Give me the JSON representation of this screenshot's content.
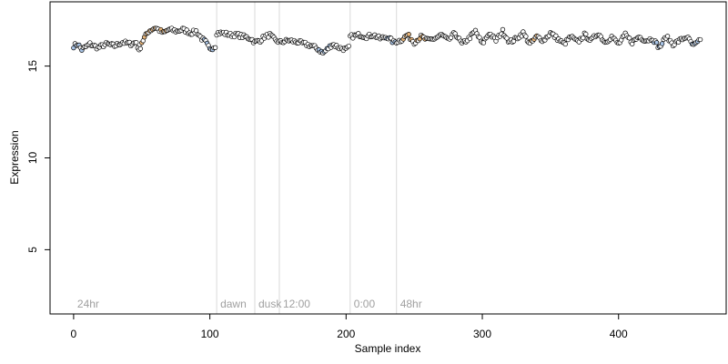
{
  "chart_data": {
    "type": "scatter",
    "title": "",
    "xlabel": "Sample index",
    "ylabel": "Expression",
    "xlim": [
      -17.3,
      479
    ],
    "ylim": [
      1.5,
      18.5
    ],
    "x_ticks": [
      0,
      100,
      200,
      300,
      400
    ],
    "y_ticks": [
      5,
      10,
      15
    ],
    "grid": false,
    "colors": {
      "point_fill_default": "#ffffff",
      "point_fill_blue": "#a9c4e6",
      "point_fill_orange": "#e6b47a",
      "point_stroke": "#000000",
      "trend_line": "#000000",
      "vline": "#d9d9d9",
      "annotation_text": "#a0a0a0"
    },
    "annotations": [
      {
        "label": "24hr",
        "x": 0
      },
      {
        "label": "dawn",
        "x": 105
      },
      {
        "label": "dusk",
        "x": 133
      },
      {
        "label": "12:00",
        "x": 151
      },
      {
        "label": "0:00",
        "x": 203
      },
      {
        "label": "48hr",
        "x": 237
      }
    ],
    "vlines": [
      105,
      133,
      151,
      203,
      237
    ],
    "trend_segments": [
      [
        0,
        104
      ],
      [
        105,
        202
      ],
      [
        203,
        460
      ]
    ],
    "n_points": 460,
    "y_keyframes": [
      [
        0,
        16.1
      ],
      [
        3,
        16.2
      ],
      [
        6,
        15.9
      ],
      [
        12,
        16.2
      ],
      [
        18,
        16.0
      ],
      [
        24,
        16.2
      ],
      [
        30,
        16.1
      ],
      [
        36,
        16.3
      ],
      [
        42,
        16.2
      ],
      [
        46,
        16.3
      ],
      [
        48,
        15.8
      ],
      [
        50,
        16.3
      ],
      [
        55,
        16.9
      ],
      [
        60,
        17.1
      ],
      [
        66,
        16.8
      ],
      [
        70,
        17.0
      ],
      [
        76,
        16.9
      ],
      [
        80,
        17.0
      ],
      [
        86,
        16.8
      ],
      [
        90,
        16.9
      ],
      [
        94,
        16.5
      ],
      [
        97,
        16.3
      ],
      [
        100,
        15.9
      ],
      [
        104,
        16.1
      ],
      [
        105,
        16.8
      ],
      [
        110,
        16.8
      ],
      [
        115,
        16.7
      ],
      [
        120,
        16.7
      ],
      [
        125,
        16.6
      ],
      [
        130,
        16.5
      ],
      [
        133,
        16.3
      ],
      [
        137,
        16.4
      ],
      [
        140,
        16.6
      ],
      [
        144,
        16.7
      ],
      [
        148,
        16.4
      ],
      [
        152,
        16.3
      ],
      [
        158,
        16.4
      ],
      [
        165,
        16.3
      ],
      [
        170,
        16.2
      ],
      [
        175,
        16.1
      ],
      [
        180,
        15.9
      ],
      [
        183,
        15.7
      ],
      [
        186,
        15.9
      ],
      [
        190,
        16.2
      ],
      [
        195,
        16.0
      ],
      [
        200,
        15.9
      ],
      [
        202,
        16.0
      ],
      [
        203,
        16.6
      ],
      [
        210,
        16.7
      ],
      [
        215,
        16.6
      ],
      [
        220,
        16.7
      ],
      [
        225,
        16.5
      ],
      [
        230,
        16.6
      ],
      [
        235,
        16.3
      ],
      [
        240,
        16.4
      ],
      [
        245,
        16.7
      ],
      [
        250,
        16.3
      ],
      [
        255,
        16.6
      ],
      [
        260,
        16.4
      ],
      [
        265,
        16.5
      ],
      [
        270,
        16.7
      ],
      [
        275,
        16.4
      ],
      [
        280,
        16.8
      ],
      [
        285,
        16.2
      ],
      [
        290,
        16.5
      ],
      [
        295,
        16.9
      ],
      [
        300,
        16.2
      ],
      [
        305,
        16.8
      ],
      [
        310,
        16.4
      ],
      [
        315,
        16.9
      ],
      [
        320,
        16.3
      ],
      [
        325,
        16.5
      ],
      [
        330,
        16.8
      ],
      [
        335,
        16.2
      ],
      [
        340,
        16.6
      ],
      [
        345,
        16.4
      ],
      [
        350,
        16.8
      ],
      [
        355,
        16.5
      ],
      [
        360,
        16.2
      ],
      [
        365,
        16.6
      ],
      [
        370,
        16.3
      ],
      [
        375,
        16.7
      ],
      [
        380,
        16.4
      ],
      [
        385,
        16.8
      ],
      [
        390,
        16.3
      ],
      [
        395,
        16.6
      ],
      [
        400,
        16.2
      ],
      [
        405,
        16.7
      ],
      [
        410,
        16.3
      ],
      [
        415,
        16.6
      ],
      [
        420,
        16.4
      ],
      [
        425,
        16.5
      ],
      [
        430,
        16.0
      ],
      [
        435,
        16.6
      ],
      [
        440,
        16.2
      ],
      [
        445,
        16.4
      ],
      [
        450,
        16.6
      ],
      [
        455,
        16.1
      ],
      [
        460,
        16.4
      ]
    ],
    "orange_ranges": [
      [
        50,
        60
      ],
      [
        63,
        68
      ],
      [
        242,
        248
      ],
      [
        252,
        258
      ],
      [
        335,
        340
      ]
    ],
    "blue_ranges": [
      [
        0,
        7
      ],
      [
        95,
        102
      ],
      [
        180,
        188
      ],
      [
        230,
        236
      ],
      [
        425,
        432
      ],
      [
        453,
        458
      ]
    ]
  }
}
